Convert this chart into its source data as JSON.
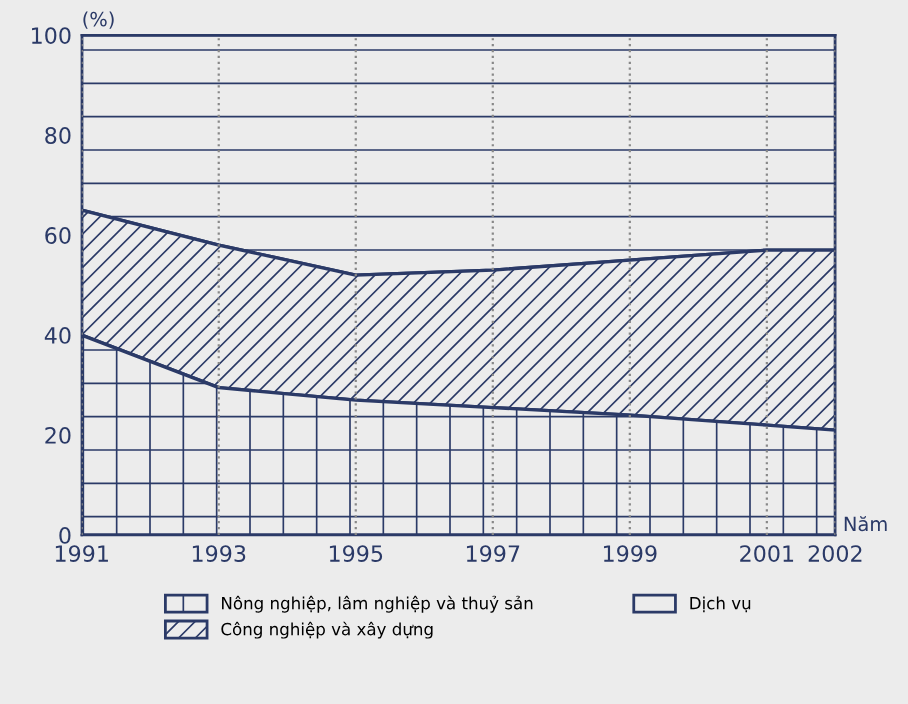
{
  "chart_data": {
    "type": "area",
    "stacked": true,
    "ylabel": "(%)",
    "xlabel": "Năm",
    "x": [
      1991,
      1993,
      1995,
      1997,
      1999,
      2001,
      2002
    ],
    "series": [
      {
        "name": "Nông nghiệp, lâm nghiệp và thuỷ sản",
        "color": "#2b3a67",
        "values": [
          40,
          29.5,
          27,
          25.5,
          24,
          22,
          21
        ]
      },
      {
        "name": "Công nghiệp và xây dựng",
        "color": "#2b3a67",
        "values": [
          25,
          28.5,
          25,
          27.5,
          31,
          35,
          36
        ]
      },
      {
        "name": "Dịch vụ",
        "color": "#2b3a67",
        "values": [
          35,
          42,
          48,
          47,
          45,
          43,
          43
        ]
      }
    ],
    "xlim": [
      1991,
      2002
    ],
    "xticks": [
      1991,
      1993,
      1995,
      1997,
      1999,
      2001,
      2002
    ],
    "ylim": [
      0,
      100
    ],
    "yticks": [
      0,
      20,
      40,
      60,
      80,
      100
    ],
    "grid": "x",
    "legend": "bottom"
  }
}
